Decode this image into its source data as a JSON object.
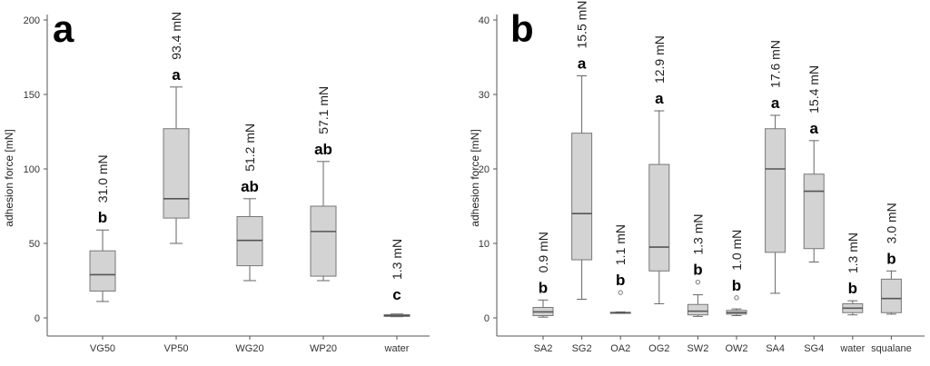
{
  "chart_data": [
    {
      "type": "boxplot",
      "panel_label": "a",
      "ylabel": "adhesion force [mN]",
      "xlabel": "",
      "ylim": [
        0,
        200
      ],
      "yticks": [
        0,
        50,
        100,
        150,
        200
      ],
      "categories": [
        "VG50",
        "VP50",
        "WG20",
        "WP20",
        "water"
      ],
      "boxes": [
        {
          "category": "VG50",
          "whisker_low": 11,
          "q1": 18,
          "median": 29,
          "q3": 45,
          "whisker_high": 59,
          "outliers": [],
          "annotation": "31.0 mN",
          "group": "b"
        },
        {
          "category": "VP50",
          "whisker_low": 50,
          "q1": 67,
          "median": 80,
          "q3": 127,
          "whisker_high": 155,
          "outliers": [],
          "annotation": "93.4 mN",
          "group": "a"
        },
        {
          "category": "WG20",
          "whisker_low": 25,
          "q1": 35,
          "median": 52,
          "q3": 68,
          "whisker_high": 80,
          "outliers": [],
          "annotation": "51.2 mN",
          "group": "ab"
        },
        {
          "category": "WP20",
          "whisker_low": 25,
          "q1": 28,
          "median": 58,
          "q3": 75,
          "whisker_high": 105,
          "outliers": [],
          "annotation": "57.1 mN",
          "group": "ab"
        },
        {
          "category": "water",
          "whisker_low": 0.8,
          "q1": 1.0,
          "median": 1.5,
          "q3": 2.2,
          "whisker_high": 2.6,
          "outliers": [],
          "annotation": "1.3 mN",
          "group": "c"
        }
      ]
    },
    {
      "type": "boxplot",
      "panel_label": "b",
      "ylabel": "adhesion force [mN]",
      "xlabel": "",
      "ylim": [
        0,
        40
      ],
      "yticks": [
        0,
        10,
        20,
        30,
        40
      ],
      "categories": [
        "SA2",
        "SG2",
        "OA2",
        "OG2",
        "SW2",
        "OW2",
        "SA4",
        "SG4",
        "water",
        "squalane"
      ],
      "boxes": [
        {
          "category": "SA2",
          "whisker_low": 0.1,
          "q1": 0.3,
          "median": 0.8,
          "q3": 1.4,
          "whisker_high": 2.4,
          "outliers": [],
          "annotation": "0.9 mN",
          "group": "b"
        },
        {
          "category": "SG2",
          "whisker_low": 2.5,
          "q1": 7.8,
          "median": 14.0,
          "q3": 24.8,
          "whisker_high": 32.5,
          "outliers": [],
          "annotation": "15.5 mN",
          "group": "a"
        },
        {
          "category": "OA2",
          "whisker_low": 0.6,
          "q1": 0.6,
          "median": 0.7,
          "q3": 0.75,
          "whisker_high": 0.8,
          "outliers": [
            3.4
          ],
          "annotation": "1.1 mN",
          "group": "b"
        },
        {
          "category": "OG2",
          "whisker_low": 1.9,
          "q1": 6.3,
          "median": 9.5,
          "q3": 20.6,
          "whisker_high": 27.8,
          "outliers": [],
          "annotation": "12.9 mN",
          "group": "a"
        },
        {
          "category": "SW2",
          "whisker_low": 0.2,
          "q1": 0.4,
          "median": 0.9,
          "q3": 1.8,
          "whisker_high": 3.1,
          "outliers": [
            4.8
          ],
          "annotation": "1.3 mN",
          "group": "b"
        },
        {
          "category": "OW2",
          "whisker_low": 0.3,
          "q1": 0.5,
          "median": 0.7,
          "q3": 1.0,
          "whisker_high": 1.2,
          "outliers": [
            2.7
          ],
          "annotation": "1.0 mN",
          "group": "b"
        },
        {
          "category": "SA4",
          "whisker_low": 3.3,
          "q1": 8.8,
          "median": 20.0,
          "q3": 25.4,
          "whisker_high": 27.2,
          "outliers": [],
          "annotation": "17.6 mN",
          "group": "a"
        },
        {
          "category": "SG4",
          "whisker_low": 7.5,
          "q1": 9.3,
          "median": 17.0,
          "q3": 19.3,
          "whisker_high": 23.8,
          "outliers": [],
          "annotation": "15.4 mN",
          "group": "a"
        },
        {
          "category": "water",
          "whisker_low": 0.4,
          "q1": 0.7,
          "median": 1.3,
          "q3": 1.9,
          "whisker_high": 2.3,
          "outliers": [],
          "annotation": "1.3 mN",
          "group": "b"
        },
        {
          "category": "squalane",
          "whisker_low": 0.5,
          "q1": 0.7,
          "median": 2.6,
          "q3": 5.2,
          "whisker_high": 6.3,
          "outliers": [],
          "annotation": "3.0 mN",
          "group": "b"
        }
      ]
    }
  ]
}
